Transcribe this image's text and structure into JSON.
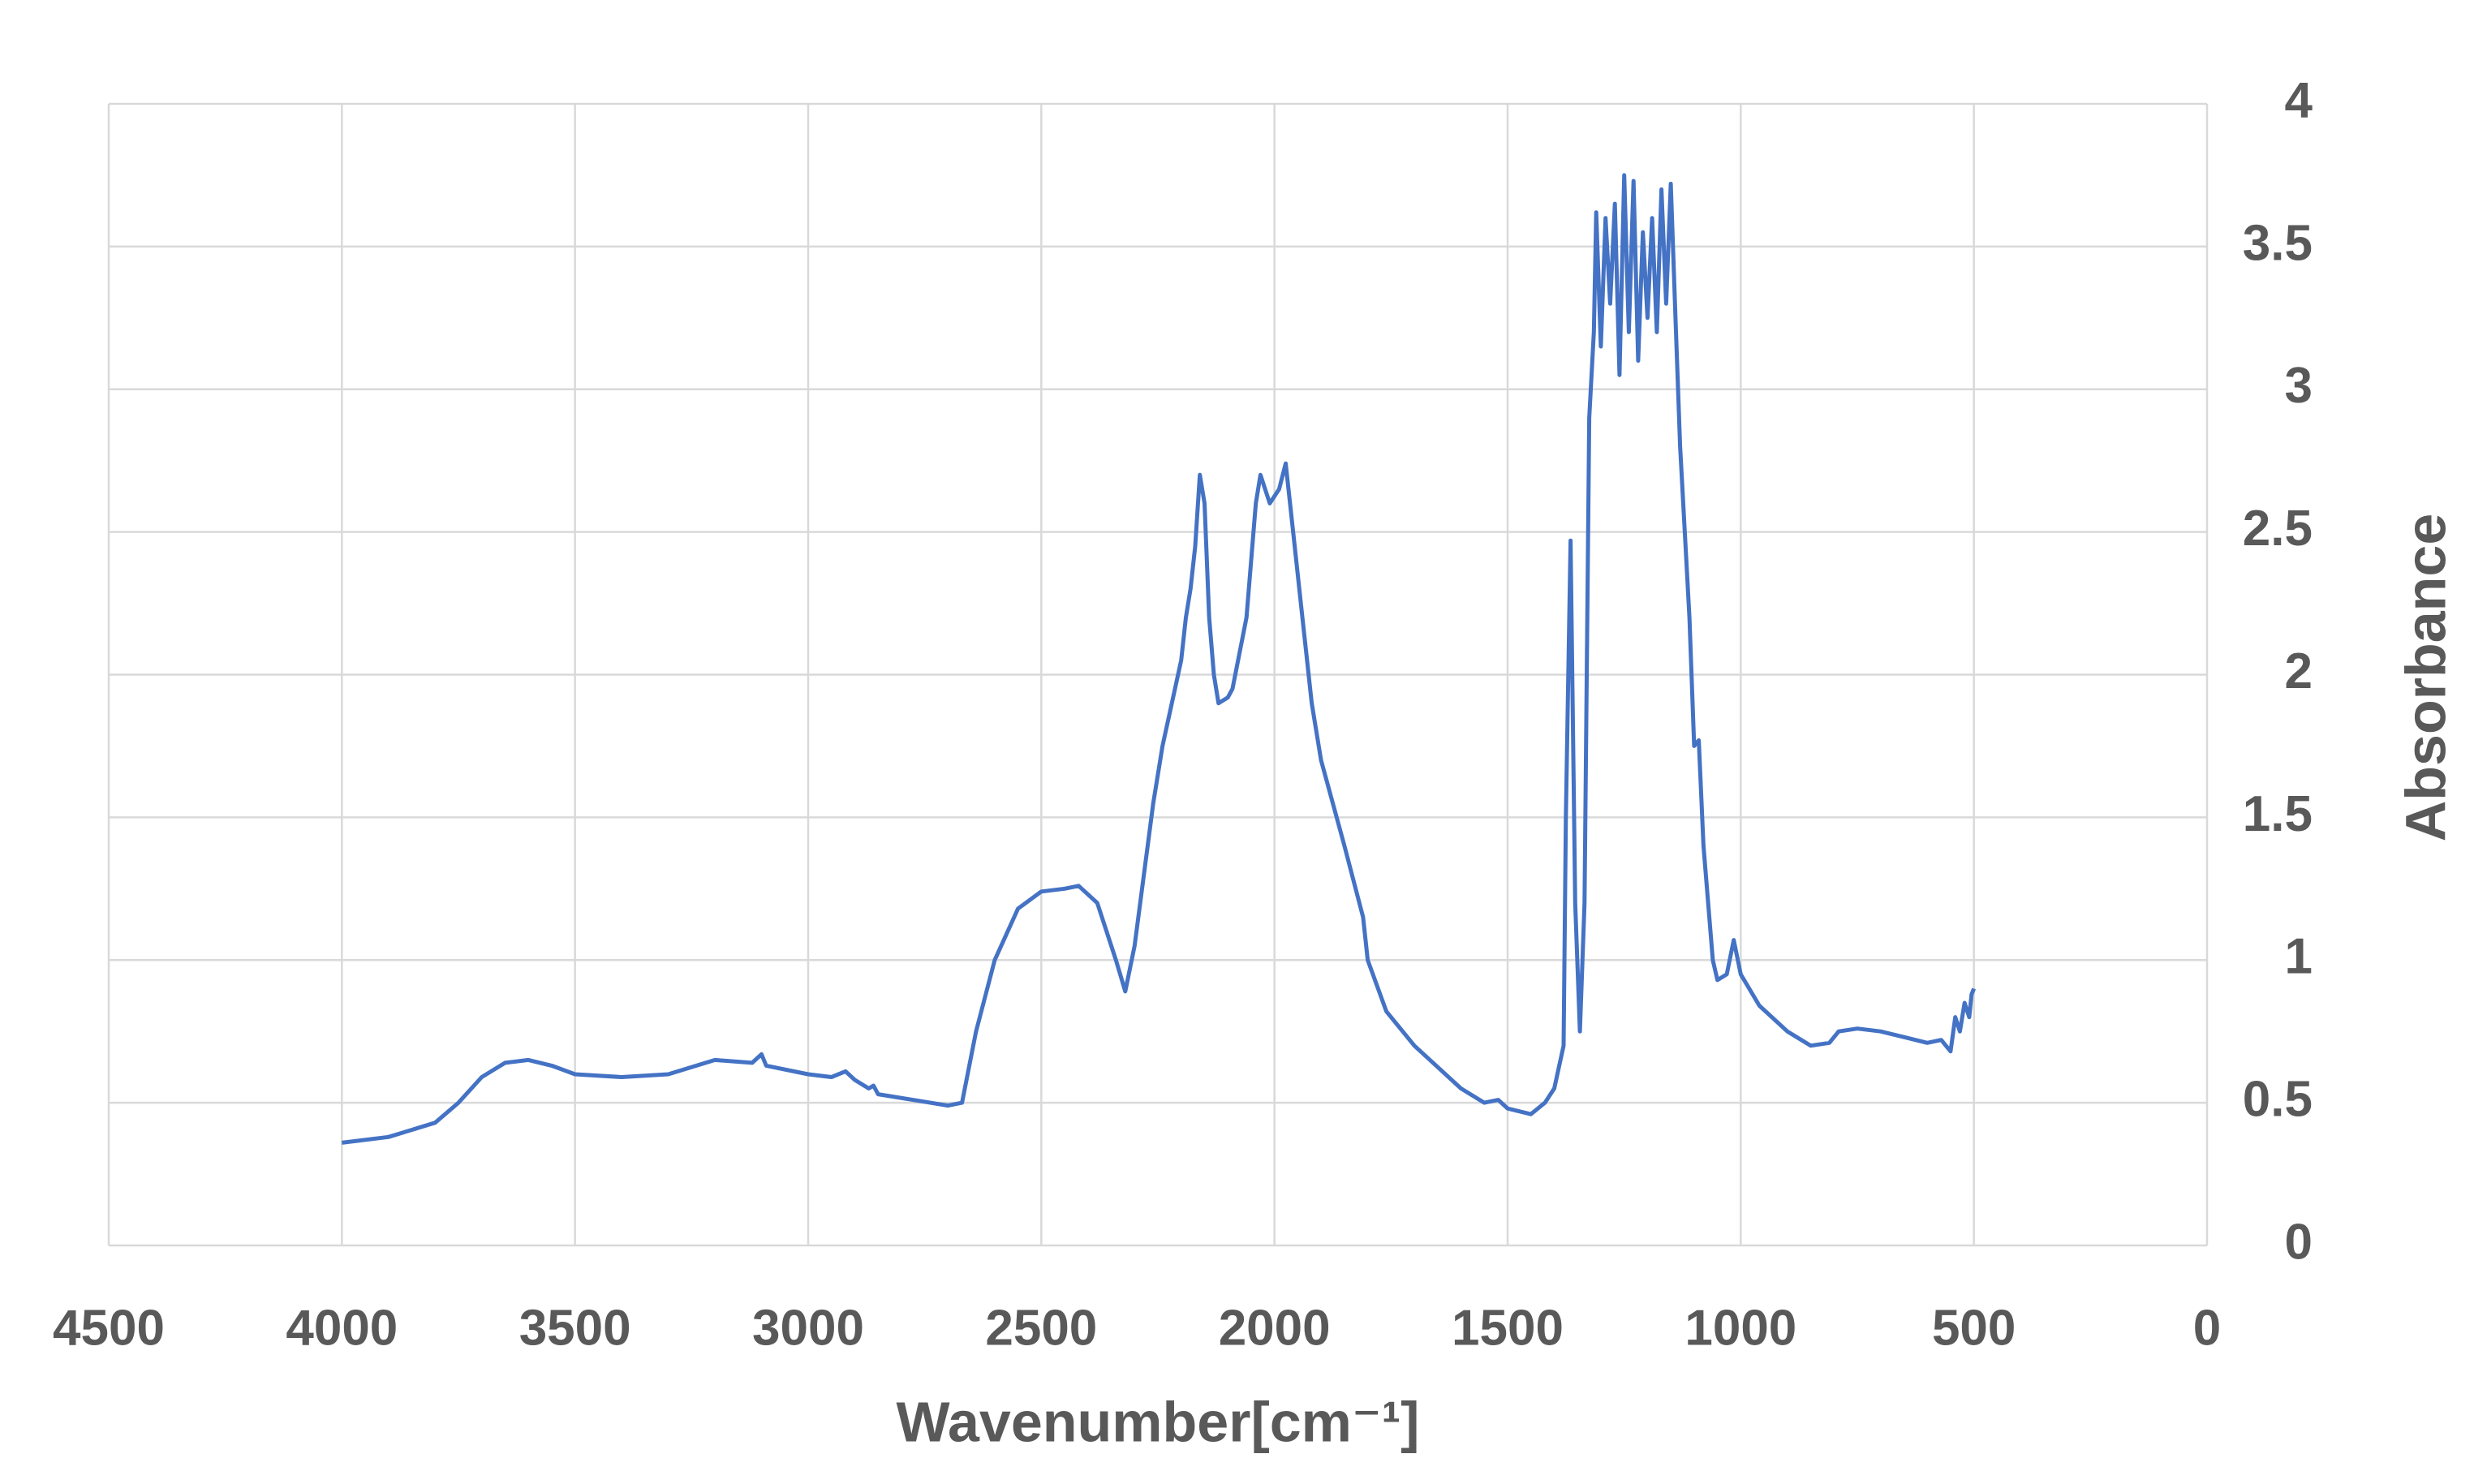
{
  "chart_data": {
    "type": "line",
    "x_label": "Wavenumber[cm⁻¹]",
    "y_label": "Absorbance",
    "xlim": [
      4500,
      0
    ],
    "ylim": [
      0,
      4
    ],
    "xticks": [
      4500,
      4000,
      3500,
      3000,
      2500,
      2000,
      1500,
      1000,
      500,
      0
    ],
    "yticks": [
      0,
      0.5,
      1,
      1.5,
      2,
      2.5,
      3,
      3.5,
      4
    ],
    "grid": true,
    "y_axis_side": "right",
    "x": [
      4000,
      3900,
      3800,
      3750,
      3700,
      3650,
      3600,
      3550,
      3500,
      3400,
      3300,
      3200,
      3120,
      3100,
      3090,
      3000,
      2950,
      2920,
      2900,
      2870,
      2860,
      2850,
      2700,
      2670,
      2640,
      2600,
      2550,
      2500,
      2450,
      2420,
      2380,
      2340,
      2320,
      2300,
      2280,
      2260,
      2240,
      2220,
      2200,
      2190,
      2180,
      2170,
      2160,
      2150,
      2140,
      2130,
      2120,
      2100,
      2090,
      2060,
      2040,
      2030,
      2010,
      1990,
      1976,
      1960,
      1940,
      1920,
      1900,
      1850,
      1810,
      1800,
      1760,
      1700,
      1600,
      1550,
      1520,
      1500,
      1450,
      1420,
      1400,
      1380,
      1375,
      1365,
      1355,
      1345,
      1335,
      1325,
      1315,
      1310,
      1300,
      1290,
      1280,
      1270,
      1260,
      1250,
      1240,
      1230,
      1220,
      1210,
      1200,
      1190,
      1180,
      1170,
      1160,
      1150,
      1140,
      1130,
      1110,
      1100,
      1090,
      1080,
      1060,
      1050,
      1030,
      1015,
      1000,
      960,
      900,
      850,
      810,
      790,
      750,
      700,
      650,
      600,
      570,
      550,
      540,
      530,
      520,
      510,
      505,
      500
    ],
    "series": [
      {
        "color": "#4472c4",
        "values": [
          0.36,
          0.38,
          0.43,
          0.5,
          0.59,
          0.64,
          0.65,
          0.63,
          0.6,
          0.59,
          0.6,
          0.65,
          0.64,
          0.67,
          0.63,
          0.6,
          0.59,
          0.61,
          0.58,
          0.55,
          0.56,
          0.53,
          0.49,
          0.5,
          0.75,
          1.0,
          1.18,
          1.24,
          1.25,
          1.26,
          1.2,
          1.0,
          0.89,
          1.05,
          1.3,
          1.55,
          1.75,
          1.9,
          2.05,
          2.2,
          2.3,
          2.45,
          2.7,
          2.6,
          2.2,
          2.0,
          1.9,
          1.92,
          1.95,
          2.2,
          2.6,
          2.7,
          2.6,
          2.65,
          2.74,
          2.5,
          2.2,
          1.9,
          1.7,
          1.4,
          1.15,
          1.0,
          0.82,
          0.7,
          0.55,
          0.5,
          0.51,
          0.48,
          0.46,
          0.5,
          0.55,
          0.7,
          1.5,
          2.47,
          1.2,
          0.75,
          1.2,
          2.9,
          3.2,
          3.62,
          3.15,
          3.6,
          3.3,
          3.65,
          3.05,
          3.75,
          3.2,
          3.73,
          3.1,
          3.55,
          3.25,
          3.6,
          3.2,
          3.7,
          3.3,
          3.72,
          3.25,
          2.8,
          2.2,
          1.75,
          1.77,
          1.4,
          1.0,
          0.93,
          0.95,
          1.07,
          0.95,
          0.84,
          0.75,
          0.7,
          0.71,
          0.75,
          0.76,
          0.75,
          0.73,
          0.71,
          0.72,
          0.68,
          0.8,
          0.75,
          0.85,
          0.8,
          0.88,
          0.9
        ]
      }
    ]
  }
}
